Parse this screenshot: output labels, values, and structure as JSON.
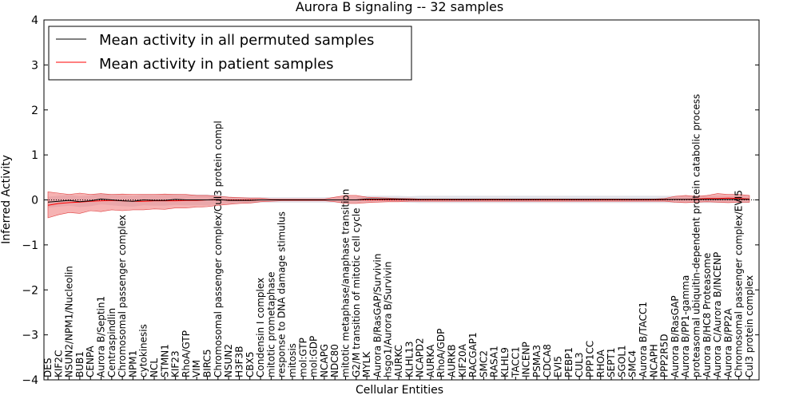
{
  "chart_data": {
    "type": "line",
    "title": "Aurora B signaling -- 32 samples",
    "xlabel": "Cellular Entities",
    "ylabel": "Inferred Activity",
    "ylim": [
      -4,
      4
    ],
    "yticks": [
      -4,
      -3,
      -2,
      -1,
      0,
      1,
      2,
      3,
      4
    ],
    "ytick_labels": [
      "−4",
      "−3",
      "−2",
      "−1",
      "0",
      "1",
      "2",
      "3",
      "4"
    ],
    "grid": false,
    "legend_position": "top-left",
    "categories": [
      "DES",
      "KIF2C",
      "NSUN2/NPM1/Nucleolin",
      "BUB1",
      "CENPA",
      "Aurora B/Septin1",
      "Centraspindlin",
      "Chromosomal passenger complex",
      "NPM1",
      "cytokinesis",
      "NCL",
      "STMN1",
      "KIF23",
      "RhoA/GTP",
      "VIM",
      "BIRC5",
      "Chromosomal passenger complex/Cul3 protein compl",
      "NSUN2",
      "H3F3B",
      "CBX5",
      "Condensin I complex",
      "mitotic prometaphase",
      "response to DNA damage stimulus",
      "mitosis",
      "mol:GTP",
      "mol:GDP",
      "NCAPG",
      "NDC80",
      "mitotic metaphase/anaphase transition",
      "G2/M transition of mitotic cell cycle",
      "MYLK",
      "Aurora B/RasGAP/Survivin",
      "hsgo1/Aurora B/Survivin",
      "AURKC",
      "KLHL13",
      "NCAPD2",
      "AURKA",
      "RhoA/GDP",
      "AURKB",
      "KIF20A",
      "RACGAP1",
      "SMC2",
      "RASA1",
      "KLHL9",
      "TACC1",
      "INCENP",
      "PSMA3",
      "CDCA8",
      "EVI5",
      "PEBP1",
      "CUL3",
      "PPP1CC",
      "RHOA",
      "SEPT1",
      "SGOL1",
      "SMC4",
      "Aurora B/TACC1",
      "NCAPH",
      "PPP2R5D",
      "Aurora B/RasGAP",
      "Aurora B/PP1-gamma",
      "proteasomal ubiquitin-dependent protein catabolic process",
      "Aurora B/HC8 Proteasome",
      "Aurora C/Aurora B/INCENP",
      "Aurora B/PP2A",
      "Chromosomal passenger complex/EVI5",
      "Cul3 protein complex"
    ],
    "series": [
      {
        "name": "Mean activity in all permuted samples",
        "color": "#000000",
        "values": [
          -0.05,
          -0.03,
          -0.01,
          -0.04,
          -0.02,
          0.02,
          0.0,
          -0.02,
          -0.03,
          0.0,
          -0.01,
          -0.01,
          0.01,
          0.0,
          0.0,
          0.0,
          0.01,
          -0.01,
          -0.01,
          -0.01,
          0.0,
          0.0,
          0.0,
          0.0,
          0.0,
          0.0,
          0.0,
          0.0,
          0.0,
          0.0,
          0.02,
          0.02,
          0.02,
          0.02,
          0.01,
          0.01,
          0.01,
          0.01,
          0.01,
          0.01,
          0.01,
          0.01,
          0.01,
          0.01,
          0.01,
          0.01,
          0.01,
          0.01,
          0.01,
          0.01,
          0.01,
          0.01,
          0.01,
          0.01,
          0.01,
          0.01,
          0.01,
          0.01,
          0.01,
          0.01,
          0.01,
          0.01,
          0.01,
          0.01,
          0.01,
          0.01,
          0.01
        ],
        "band_color": "#c8c8d6",
        "band_half_width": [
          0.12,
          0.12,
          0.12,
          0.12,
          0.12,
          0.12,
          0.12,
          0.12,
          0.12,
          0.12,
          0.12,
          0.12,
          0.12,
          0.12,
          0.12,
          0.12,
          0.1,
          0.08,
          0.07,
          0.07,
          0.06,
          0.06,
          0.06,
          0.06,
          0.06,
          0.06,
          0.06,
          0.06,
          0.07,
          0.07,
          0.07,
          0.07,
          0.07,
          0.07,
          0.07,
          0.08,
          0.08,
          0.08,
          0.08,
          0.08,
          0.08,
          0.08,
          0.08,
          0.08,
          0.08,
          0.08,
          0.08,
          0.08,
          0.08,
          0.08,
          0.08,
          0.08,
          0.08,
          0.08,
          0.08,
          0.08,
          0.08,
          0.08,
          0.08,
          0.08,
          0.08,
          0.08,
          0.08,
          0.08,
          0.08,
          0.08,
          0.08
        ]
      },
      {
        "name": "Mean activity in patient samples",
        "color": "#ff0000",
        "values": [
          -0.12,
          -0.08,
          -0.06,
          -0.05,
          -0.03,
          -0.02,
          -0.01,
          -0.02,
          -0.03,
          -0.03,
          -0.02,
          -0.02,
          -0.02,
          -0.01,
          -0.01,
          0.0,
          0.0,
          0.0,
          0.0,
          0.0,
          0.0,
          0.0,
          0.0,
          0.0,
          0.0,
          0.0,
          0.0,
          0.0,
          0.0,
          0.0,
          0.0,
          0.0,
          0.0,
          0.0,
          0.0,
          0.0,
          0.0,
          0.0,
          0.0,
          0.0,
          0.0,
          0.0,
          0.0,
          0.0,
          0.0,
          0.0,
          0.0,
          0.0,
          0.0,
          0.0,
          0.0,
          0.0,
          0.0,
          0.0,
          0.0,
          0.0,
          0.0,
          0.0,
          0.0,
          0.01,
          0.01,
          0.02,
          0.03,
          0.03,
          0.04,
          0.03,
          0.02
        ],
        "band_color": "#f08080",
        "band_lower": [
          -0.4,
          -0.33,
          -0.28,
          -0.3,
          -0.24,
          -0.26,
          -0.22,
          -0.24,
          -0.22,
          -0.22,
          -0.2,
          -0.21,
          -0.18,
          -0.18,
          -0.16,
          -0.15,
          -0.12,
          -0.1,
          -0.08,
          -0.07,
          -0.04,
          -0.03,
          -0.02,
          -0.02,
          -0.02,
          -0.02,
          -0.02,
          -0.04,
          -0.08,
          -0.08,
          -0.06,
          -0.05,
          -0.04,
          -0.04,
          -0.03,
          -0.03,
          -0.03,
          -0.03,
          -0.03,
          -0.03,
          -0.03,
          -0.03,
          -0.03,
          -0.03,
          -0.03,
          -0.03,
          -0.03,
          -0.03,
          -0.03,
          -0.03,
          -0.03,
          -0.03,
          -0.03,
          -0.03,
          -0.03,
          -0.03,
          -0.03,
          -0.03,
          -0.03,
          -0.05,
          -0.06,
          -0.05,
          -0.04,
          -0.05,
          -0.06,
          -0.05,
          -0.05
        ],
        "band_upper": [
          0.18,
          0.15,
          0.12,
          0.15,
          0.12,
          0.14,
          0.12,
          0.13,
          0.12,
          0.12,
          0.12,
          0.13,
          0.12,
          0.12,
          0.1,
          0.1,
          0.08,
          0.06,
          0.05,
          0.04,
          0.04,
          0.02,
          0.02,
          0.02,
          0.02,
          0.02,
          0.02,
          0.06,
          0.1,
          0.1,
          0.06,
          0.05,
          0.04,
          0.03,
          0.03,
          0.02,
          0.02,
          0.02,
          0.02,
          0.02,
          0.02,
          0.02,
          0.02,
          0.02,
          0.02,
          0.02,
          0.02,
          0.02,
          0.02,
          0.02,
          0.02,
          0.02,
          0.02,
          0.02,
          0.02,
          0.02,
          0.02,
          0.02,
          0.03,
          0.08,
          0.1,
          0.08,
          0.1,
          0.14,
          0.12,
          0.12,
          0.1
        ]
      }
    ]
  }
}
